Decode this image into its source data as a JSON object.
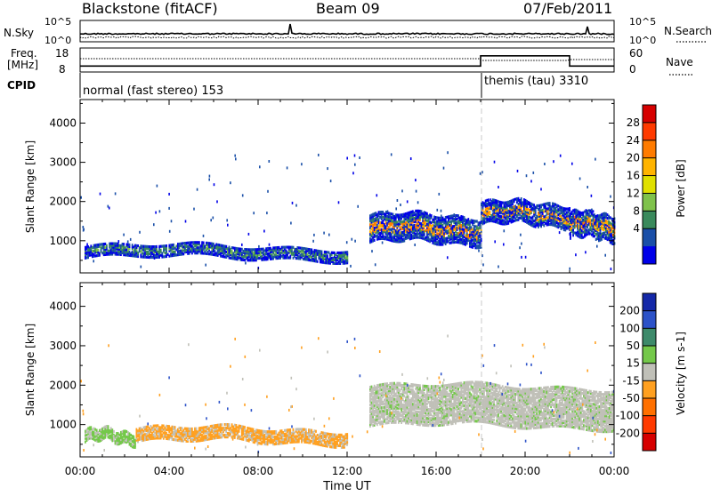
{
  "header": {
    "station": "Blackstone (fitACF)",
    "beam": "Beam 09",
    "date": "07/Feb/2011"
  },
  "noise_panel": {
    "left_label": "N.Sky",
    "right_label": "N.Search",
    "left_ticks": [
      "10^5",
      "10^0"
    ],
    "right_ticks": [
      "10^5",
      "10^0"
    ]
  },
  "freq_panel": {
    "left_label_line1": "Freq.",
    "left_label_line2": "[MHz]",
    "right_label": "Nave",
    "left_ticks": [
      "18",
      "8"
    ],
    "right_ticks": [
      "60",
      "0"
    ]
  },
  "cpid": {
    "label": "CPID",
    "segments": [
      {
        "name": "normal (fast stereo) 153",
        "start_hour": 0,
        "end_hour": 18
      },
      {
        "name": "themis (tau) 3310",
        "start_hour": 18,
        "end_hour": 24
      }
    ]
  },
  "power_panel": {
    "ylabel": "Slant Range [km]",
    "yticks": [
      "4000",
      "3000",
      "2000",
      "1000"
    ],
    "colorbar_label": "Power [dB]",
    "colorbar_ticks": [
      "28",
      "24",
      "20",
      "16",
      "12",
      "8",
      "4"
    ],
    "colorbar_colors": [
      "#d60000",
      "#ff3a00",
      "#ff7b00",
      "#ffb400",
      "#e0e000",
      "#7fc24b",
      "#3a8a5c",
      "#1a4fa8",
      "#0000e8"
    ]
  },
  "velocity_panel": {
    "ylabel": "Slant Range [km]",
    "yticks": [
      "4000",
      "3000",
      "2000",
      "1000"
    ],
    "colorbar_label": "Velocity [m s-1]",
    "colorbar_ticks": [
      "200",
      "100",
      "50",
      "15",
      "-15",
      "-50",
      "-100",
      "-200"
    ],
    "colorbar_colors": [
      "#1428a8",
      "#2c52c8",
      "#3d8a6a",
      "#74c84a",
      "#c0c0b8",
      "#ffa020",
      "#ff7000",
      "#ff3a00",
      "#d60000"
    ]
  },
  "xaxis": {
    "label": "Time UT",
    "ticks": [
      "00:00",
      "04:00",
      "08:00",
      "12:00",
      "16:00",
      "20:00",
      "00:00"
    ]
  },
  "chart_data": {
    "type": "heatmap",
    "title": "Blackstone (fitACF)   Beam 09   07/Feb/2011",
    "xlabel": "Time UT",
    "ylabel": "Slant Range [km]",
    "xlim_hours": [
      0,
      24
    ],
    "ylim_km": [
      180,
      4600
    ],
    "program_change_hour": 18,
    "power_scatter_bands": [
      {
        "start_hour": 0.2,
        "end_hour": 12.0,
        "range_km": [
          550,
          850
        ],
        "power_db": "8-16",
        "note": "near-range band"
      },
      {
        "start_hour": 13.0,
        "end_hour": 18.0,
        "range_km": [
          950,
          1650
        ],
        "power_db": "8-24"
      },
      {
        "start_hour": 18.0,
        "end_hour": 22.0,
        "range_km": [
          1400,
          1950
        ],
        "power_db": "8-24"
      },
      {
        "start_hour": 22.0,
        "end_hour": 24.0,
        "range_km": [
          1050,
          1700
        ],
        "power_db": "12-28"
      }
    ],
    "velocity_scatter_bands": [
      {
        "start_hour": 0.2,
        "end_hour": 2.5,
        "range_km": [
          550,
          850
        ],
        "velocity_ms": "15 to 50"
      },
      {
        "start_hour": 2.5,
        "end_hour": 12.0,
        "range_km": [
          550,
          900
        ],
        "velocity_ms": "-15 to -50"
      },
      {
        "start_hour": 13.0,
        "end_hour": 24.0,
        "range_km": [
          950,
          1950
        ],
        "velocity_ms": "-15 to 15"
      }
    ],
    "nave_step": [
      {
        "start_hour": 0,
        "end_hour": 18,
        "value": 15
      },
      {
        "start_hour": 18,
        "end_hour": 22,
        "value": 45
      },
      {
        "start_hour": 22,
        "end_hour": 24,
        "value": 15
      }
    ]
  }
}
